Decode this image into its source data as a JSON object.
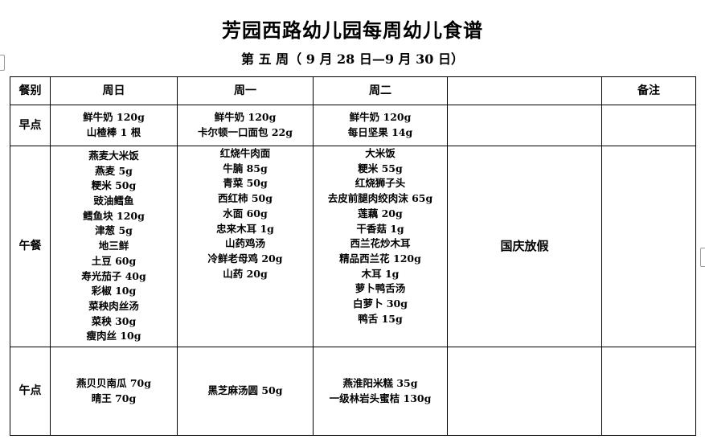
{
  "title": "芳园西路幼儿园每周幼儿食谱",
  "subtitle": "第 五 周（ 9 月 28 日—9 月 30 日）",
  "table": {
    "headers": [
      "餐别",
      "周日",
      "周一",
      "周二",
      "",
      "备注"
    ],
    "rows": [
      {
        "label": "早点",
        "cells": [
          [
            "鲜牛奶 120g",
            "山楂棒 1 根"
          ],
          [
            "鲜牛奶 120g",
            "卡尔顿一口面包 22g"
          ],
          [
            "鲜牛奶 120g",
            "每日坚果 14g"
          ]
        ]
      },
      {
        "label": "午餐",
        "cells": [
          [
            "燕麦大米饭",
            "燕麦 5g",
            "粳米 50g",
            "豉油鳕鱼",
            "鳕鱼块 120g",
            "津葱 5g",
            "地三鲜",
            "土豆 60g",
            "寿光茄子 40g",
            "彩椒 10g",
            "菜秧肉丝汤",
            "菜秧 30g",
            "瘦肉丝 10g"
          ],
          [
            "红烧牛肉面",
            "牛腩 85g",
            "青菜 50g",
            "西红柿 50g",
            "水面 60g",
            "忠来木耳 1g",
            "山药鸡汤",
            "冷鲜老母鸡 20g",
            "山药 20g"
          ],
          [
            "大米饭",
            "粳米 55g",
            "红烧狮子头",
            "去皮前腿肉绞肉沫 65g",
            "莲藕 20g",
            "干香菇 1g",
            "西兰花炒木耳",
            "精品西兰花 120g",
            "木耳 1g",
            "萝卜鸭舌汤",
            "白萝卜 30g",
            "鸭舌 15g"
          ]
        ]
      },
      {
        "label": "午点",
        "cells": [
          [
            "燕贝贝南瓜 70g",
            "晴王 70g"
          ],
          [
            "黑芝麻汤圆 50g"
          ],
          [
            "燕淮阳米糕 35g",
            "一级林岩头蜜桔 130g"
          ]
        ]
      }
    ],
    "holiday": "国庆放假"
  }
}
